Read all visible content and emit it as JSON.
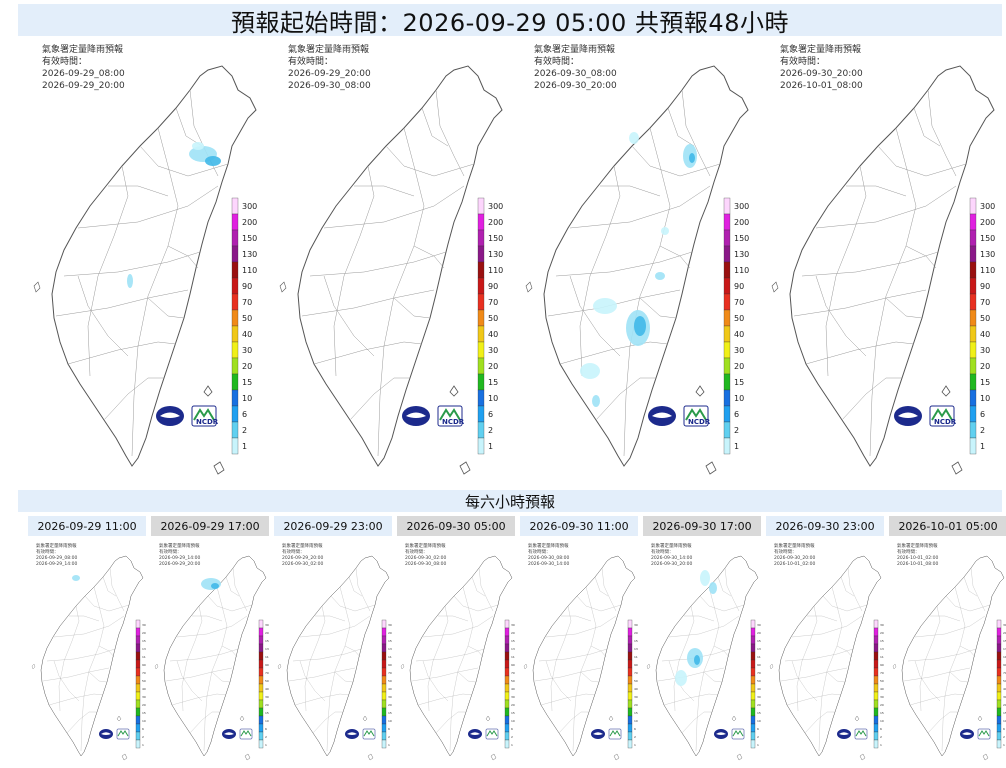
{
  "header": {
    "title": "預報起始時間：2026-09-29 05:00  共預報48小時"
  },
  "big_panels": [
    {
      "title": "氣象署定量降雨預報",
      "valid_label": "有效時間：",
      "from": "2026-09-29_08:00",
      "to": "2026-09-29_20:00"
    },
    {
      "title": "氣象署定量降雨預報",
      "valid_label": "有效時間：",
      "from": "2026-09-29_20:00",
      "to": "2026-09-30_08:00"
    },
    {
      "title": "氣象署定量降雨預報",
      "valid_label": "有效時間：",
      "from": "2026-09-30_08:00",
      "to": "2026-09-30_20:00"
    },
    {
      "title": "氣象署定量降雨預報",
      "valid_label": "有效時間：",
      "from": "2026-09-30_20:00",
      "to": "2026-10-01_08:00"
    }
  ],
  "legend": {
    "levels": [
      "300",
      "200",
      "150",
      "130",
      "110",
      "90",
      "70",
      "50",
      "40",
      "30",
      "20",
      "15",
      "10",
      "6",
      "2",
      "1"
    ],
    "colors": [
      "#fdd6fd",
      "#e020e0",
      "#b020b0",
      "#8a1888",
      "#9a1010",
      "#c81818",
      "#e83020",
      "#f08a18",
      "#f0c818",
      "#f0f018",
      "#a0e020",
      "#20b820",
      "#1870e0",
      "#20a0f0",
      "#60d0f0",
      "#c8f4fc"
    ]
  },
  "logos": {
    "ncdr": "NCDR"
  },
  "six_hour": {
    "title": "每六小時預報",
    "panels": [
      {
        "tab": "2026-09-29 11:00",
        "active": true,
        "title": "氣象署定量降雨預報",
        "valid_label": "有效時間：",
        "from": "2026-09-29_08:00",
        "to": "2026-09-29_14:00"
      },
      {
        "tab": "2026-09-29 17:00",
        "active": false,
        "title": "氣象署定量降雨預報",
        "valid_label": "有效時間：",
        "from": "2026-09-29_14:00",
        "to": "2026-09-29_20:00"
      },
      {
        "tab": "2026-09-29 23:00",
        "active": true,
        "title": "氣象署定量降雨預報",
        "valid_label": "有效時間：",
        "from": "2026-09-29_20:00",
        "to": "2026-09-30_02:00"
      },
      {
        "tab": "2026-09-30 05:00",
        "active": false,
        "title": "氣象署定量降雨預報",
        "valid_label": "有效時間：",
        "from": "2026-09-30_02:00",
        "to": "2026-09-30_08:00"
      },
      {
        "tab": "2026-09-30 11:00",
        "active": true,
        "title": "氣象署定量降雨預報",
        "valid_label": "有效時間：",
        "from": "2026-09-30_08:00",
        "to": "2026-09-30_14:00"
      },
      {
        "tab": "2026-09-30 17:00",
        "active": false,
        "title": "氣象署定量降雨預報",
        "valid_label": "有效時間：",
        "from": "2026-09-30_14:00",
        "to": "2026-09-30_20:00"
      },
      {
        "tab": "2026-09-30 23:00",
        "active": true,
        "title": "氣象署定量降雨預報",
        "valid_label": "有效時間：",
        "from": "2026-09-30_20:00",
        "to": "2026-10-01_02:00"
      },
      {
        "tab": "2026-10-01 05:00",
        "active": false,
        "title": "氣象署定量降雨預報",
        "valid_label": "有效時間：",
        "from": "2026-10-01_02:00",
        "to": "2026-10-01_08:00"
      }
    ]
  }
}
